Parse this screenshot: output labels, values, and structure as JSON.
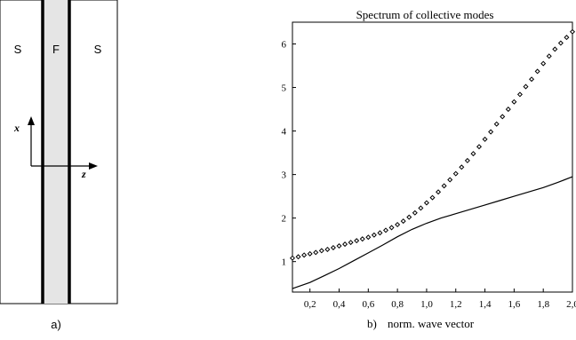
{
  "panel_a": {
    "regions": [
      "S",
      "F",
      "S"
    ],
    "axis_x_label": "x",
    "axis_z_label": "z",
    "caption": "a)",
    "colors": {
      "ferromagnet_fill": "#e5e5e5",
      "line": "#000000"
    }
  },
  "panel_b": {
    "caption_letter": "b)"
  },
  "chart_data": {
    "type": "scatter",
    "title": "Spectrum of collective modes",
    "xlabel": "norm. wave vector",
    "ylabel": "",
    "xlim": [
      0.08,
      2.0
    ],
    "ylim": [
      0.3,
      6.5
    ],
    "x_ticks": [
      0.2,
      0.4,
      0.6,
      0.8,
      1.0,
      1.2,
      1.4,
      1.6,
      1.8,
      2.0
    ],
    "x_tick_labels": [
      "0,2",
      "0,4",
      "0,6",
      "0,8",
      "1,0",
      "1,2",
      "1,4",
      "1,6",
      "1,8",
      "2,0"
    ],
    "y_ticks": [
      1,
      2,
      3,
      4,
      5,
      6
    ],
    "y_tick_labels": [
      "1",
      "2",
      "3",
      "4",
      "5",
      "6"
    ],
    "grid": false,
    "legend": "none",
    "series": [
      {
        "style": "diamond-markers",
        "x": [
          0.08,
          0.12,
          0.16,
          0.2,
          0.24,
          0.28,
          0.32,
          0.36,
          0.4,
          0.44,
          0.48,
          0.52,
          0.56,
          0.6,
          0.64,
          0.68,
          0.72,
          0.76,
          0.8,
          0.84,
          0.88,
          0.92,
          0.96,
          1.0,
          1.04,
          1.08,
          1.12,
          1.16,
          1.2,
          1.24,
          1.28,
          1.32,
          1.36,
          1.4,
          1.44,
          1.48,
          1.52,
          1.56,
          1.6,
          1.64,
          1.68,
          1.72,
          1.76,
          1.8,
          1.84,
          1.88,
          1.92,
          1.96,
          2.0
        ],
        "y": [
          1.08,
          1.11,
          1.15,
          1.18,
          1.21,
          1.25,
          1.28,
          1.32,
          1.36,
          1.4,
          1.44,
          1.48,
          1.52,
          1.56,
          1.61,
          1.66,
          1.72,
          1.78,
          1.85,
          1.93,
          2.02,
          2.12,
          2.23,
          2.35,
          2.47,
          2.6,
          2.74,
          2.88,
          3.02,
          3.17,
          3.32,
          3.48,
          3.64,
          3.81,
          3.98,
          4.16,
          4.33,
          4.5,
          4.67,
          4.84,
          5.02,
          5.19,
          5.37,
          5.55,
          5.72,
          5.88,
          6.02,
          6.15,
          6.28
        ]
      },
      {
        "style": "solid-line",
        "x": [
          0.08,
          0.2,
          0.3,
          0.4,
          0.5,
          0.6,
          0.7,
          0.8,
          0.9,
          1.0,
          1.1,
          1.2,
          1.3,
          1.4,
          1.5,
          1.6,
          1.7,
          1.8,
          1.9,
          2.0
        ],
        "y": [
          0.38,
          0.52,
          0.68,
          0.84,
          1.02,
          1.2,
          1.38,
          1.57,
          1.74,
          1.88,
          2.0,
          2.1,
          2.2,
          2.3,
          2.4,
          2.5,
          2.6,
          2.7,
          2.82,
          2.95
        ]
      }
    ]
  }
}
